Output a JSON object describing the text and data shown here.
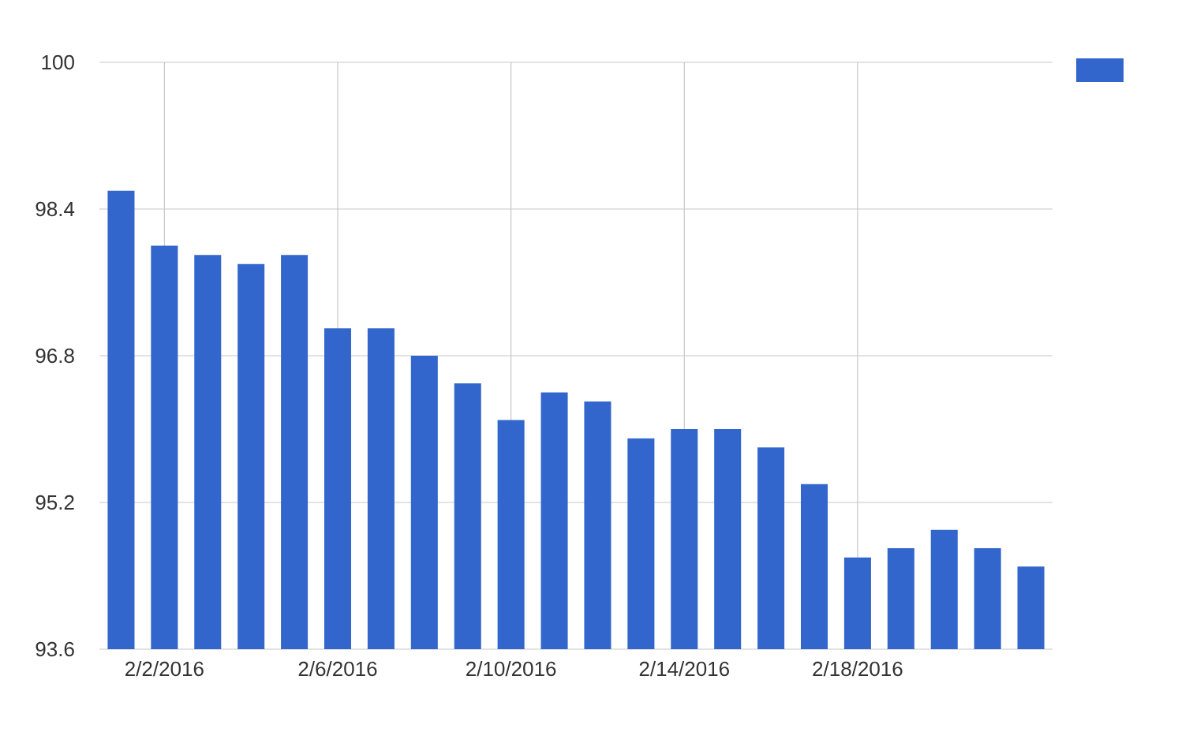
{
  "chart_data": {
    "type": "bar",
    "x": [
      "2016-02-01",
      "2016-02-02",
      "2016-02-03",
      "2016-02-04",
      "2016-02-05",
      "2016-02-06",
      "2016-02-07",
      "2016-02-08",
      "2016-02-09",
      "2016-02-10",
      "2016-02-11",
      "2016-02-12",
      "2016-02-13",
      "2016-02-14",
      "2016-02-15",
      "2016-02-16",
      "2016-02-17",
      "2016-02-18",
      "2016-02-19",
      "2016-02-20",
      "2016-02-21",
      "2016-02-22"
    ],
    "series": [
      {
        "color": "#3366cc",
        "values": [
          98.6,
          98.0,
          97.9,
          97.8,
          97.9,
          97.1,
          97.1,
          96.8,
          96.5,
          96.1,
          96.4,
          96.3,
          95.9,
          96.0,
          96.0,
          95.8,
          95.4,
          94.6,
          94.7,
          94.9,
          94.7,
          94.5
        ]
      }
    ],
    "xlim": [
      "2016-01-31T12:00",
      "2016-02-22T12:00"
    ],
    "xticks": [
      {
        "value": "2016-02-02",
        "label": "2/2/2016"
      },
      {
        "value": "2016-02-06",
        "label": "2/6/2016"
      },
      {
        "value": "2016-02-10",
        "label": "2/10/2016"
      },
      {
        "value": "2016-02-14",
        "label": "2/14/2016"
      },
      {
        "value": "2016-02-18",
        "label": "2/18/2016"
      }
    ],
    "ylim": [
      93.6,
      100
    ],
    "yticks": [
      93.6,
      95.2,
      96.8,
      98.4,
      100
    ],
    "grid": true
  }
}
